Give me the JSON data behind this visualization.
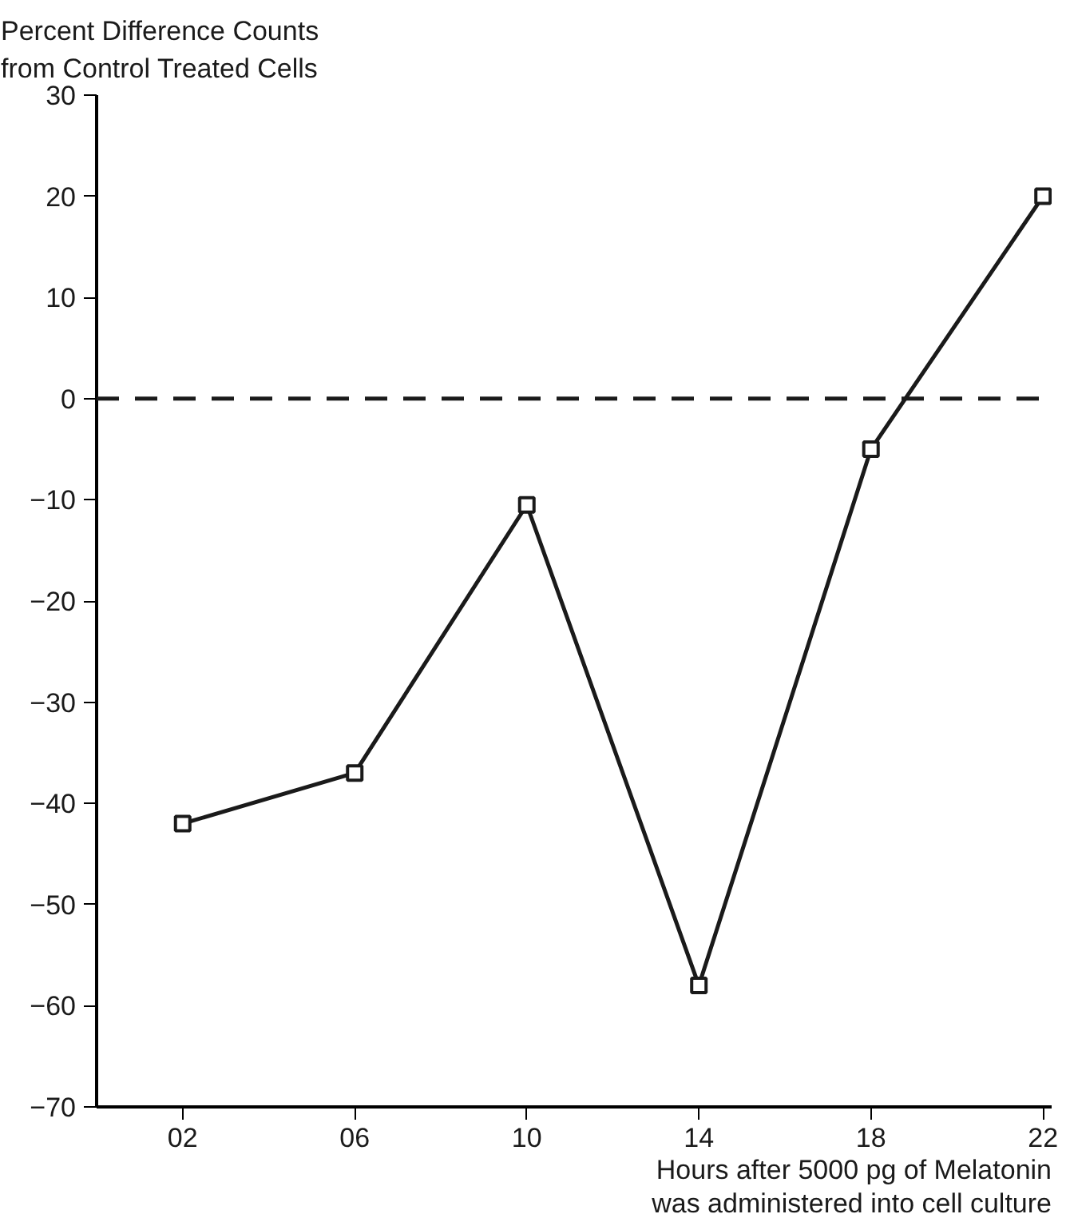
{
  "chart_data": {
    "type": "line",
    "ylabel": "Percent Difference Counts from Control Treated Cells",
    "xlabel": "Hours after 5000 pg of Melatonin was administered into cell culture",
    "categories": [
      "02",
      "06",
      "10",
      "14",
      "18",
      "22"
    ],
    "series": [
      {
        "color": "#1a1a1a",
        "values": [
          -42,
          -37,
          -10.5,
          -58,
          -5,
          20
        ]
      }
    ],
    "ylim": [
      -70,
      30
    ],
    "yticks": [
      {
        "value": -70,
        "label": "−70"
      },
      {
        "value": -60,
        "label": "−60"
      },
      {
        "value": -50,
        "label": "−50"
      },
      {
        "value": -40,
        "label": "−40"
      },
      {
        "value": -30,
        "label": "−30"
      },
      {
        "value": -20,
        "label": "−20"
      },
      {
        "value": -10,
        "label": "−10"
      },
      0,
      10,
      20,
      30
    ],
    "ref_lines": [
      {
        "axis": "y",
        "value": 0,
        "color": "#1a1a1a",
        "line_style": "dashed"
      }
    ],
    "marker": "square",
    "line_style": "solid",
    "grid": false
  }
}
